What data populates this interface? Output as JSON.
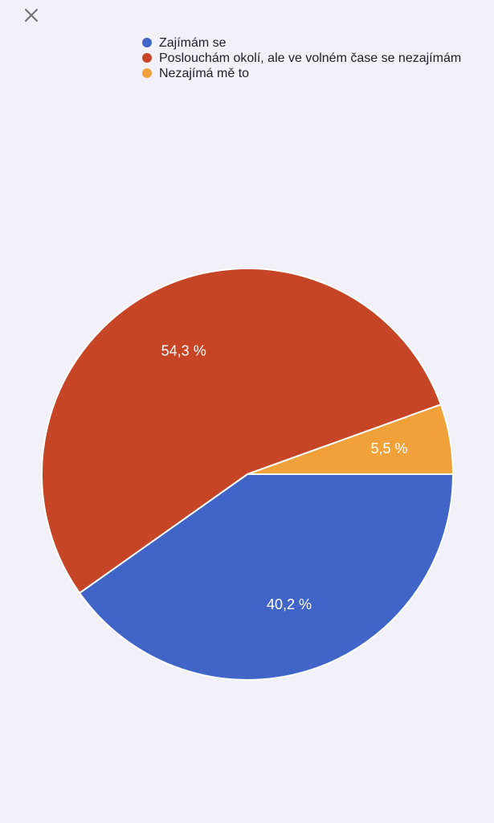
{
  "chart_data": {
    "type": "pie",
    "series": [
      {
        "name": "Zajímám se",
        "color": "#4065c6",
        "values": [
          40.2
        ],
        "value_labels": [
          "40,2 %"
        ]
      },
      {
        "name": "Poslouchám okolí, ale ve volném čase se nezajímám",
        "color": "#c64526",
        "values": [
          54.3
        ],
        "value_labels": [
          "54,3 %"
        ]
      },
      {
        "name": "Nezajímá mě to",
        "color": "#f0a13a",
        "values": [
          5.5
        ],
        "value_labels": [
          "5,5 %"
        ]
      }
    ]
  }
}
